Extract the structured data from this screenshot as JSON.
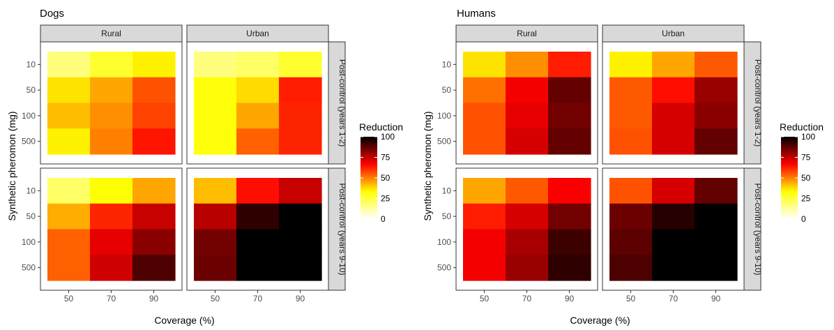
{
  "chart_data": [
    {
      "type": "heatmap",
      "title": "Dogs",
      "xlabel": "Coverage (%)",
      "ylabel": "Synthetic pheromon (mg)",
      "x_categories": [
        "50",
        "70",
        "90"
      ],
      "y_categories": [
        "10",
        "50",
        "100",
        "500"
      ],
      "column_facets": [
        "Rural",
        "Urban"
      ],
      "row_facets": [
        "Post-control (years 1-2)",
        "Post-control (years 9-10)"
      ],
      "legend": {
        "title": "Reduction",
        "range": [
          0,
          100
        ],
        "ticks": [
          "0",
          "25",
          "50",
          "75",
          "100"
        ],
        "position": "right"
      },
      "color_scale": [
        "#ffffff",
        "#ffff00",
        "#ff0000",
        "#000000"
      ],
      "cells": {
        "Rural|Post-control (years 1-2)": [
          [
            17,
            27,
            35
          ],
          [
            37,
            45,
            56
          ],
          [
            42,
            48,
            58
          ],
          [
            35,
            50,
            64
          ]
        ],
        "Urban|Post-control (years 1-2)": [
          [
            17,
            20,
            27
          ],
          [
            32,
            38,
            63
          ],
          [
            32,
            45,
            62
          ],
          [
            32,
            54,
            62
          ]
        ],
        "Rural|Post-control (years 9-10)": [
          [
            20,
            33,
            45
          ],
          [
            44,
            62,
            74
          ],
          [
            54,
            70,
            82
          ],
          [
            54,
            73,
            90
          ]
        ],
        "Urban|Post-control (years 9-10)": [
          [
            42,
            65,
            74
          ],
          [
            76,
            94,
            100
          ],
          [
            85,
            100,
            100
          ],
          [
            86,
            100,
            100
          ]
        ]
      }
    },
    {
      "type": "heatmap",
      "title": "Humans",
      "xlabel": "Coverage (%)",
      "ylabel": "Synthetic pheromon (mg)",
      "x_categories": [
        "50",
        "70",
        "90"
      ],
      "y_categories": [
        "10",
        "50",
        "100",
        "500"
      ],
      "column_facets": [
        "Rural",
        "Urban"
      ],
      "row_facets": [
        "Post-control (years 1-2)",
        "Post-control (years 9-10)"
      ],
      "legend": {
        "title": "Reduction",
        "range": [
          0,
          100
        ],
        "ticks": [
          "0",
          "25",
          "50",
          "75",
          "100"
        ],
        "position": "right"
      },
      "color_scale": [
        "#ffffff",
        "#ffff00",
        "#ff0000",
        "#000000"
      ],
      "cells": {
        "Rural|Post-control (years 1-2)": [
          [
            37,
            48,
            63
          ],
          [
            52,
            68,
            87
          ],
          [
            56,
            70,
            85
          ],
          [
            56,
            72,
            87
          ]
        ],
        "Urban|Post-control (years 1-2)": [
          [
            35,
            45,
            55
          ],
          [
            55,
            65,
            80
          ],
          [
            55,
            72,
            82
          ],
          [
            56,
            72,
            87
          ]
        ],
        "Rural|Post-control (years 9-10)": [
          [
            45,
            55,
            67
          ],
          [
            63,
            72,
            85
          ],
          [
            68,
            78,
            92
          ],
          [
            68,
            80,
            94
          ]
        ],
        "Urban|Post-control (years 9-10)": [
          [
            56,
            72,
            87
          ],
          [
            86,
            95,
            100
          ],
          [
            88,
            100,
            100
          ],
          [
            90,
            100,
            100
          ]
        ]
      }
    }
  ]
}
